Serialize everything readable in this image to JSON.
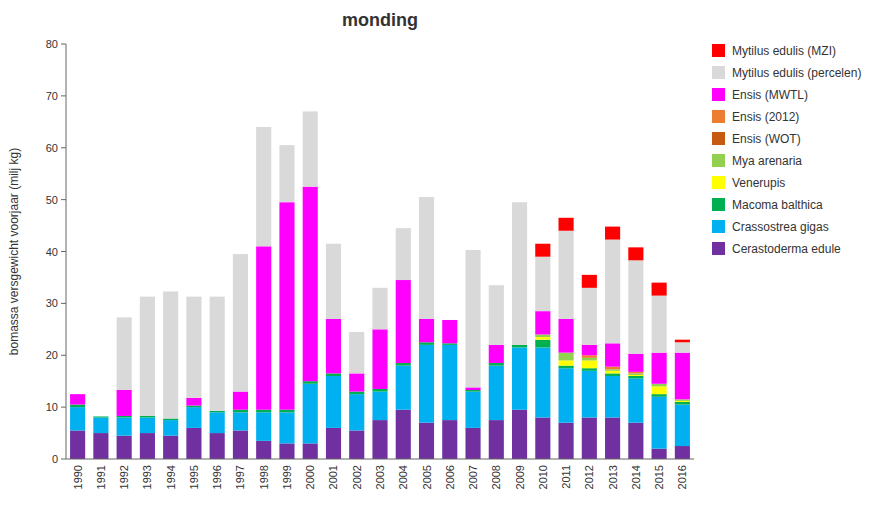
{
  "chart_data": {
    "type": "bar",
    "stacked": true,
    "title": "monding",
    "y_label": "bomassa versgewicht voorjaar (milj kg)",
    "categories": [
      "1990",
      "1991",
      "1992",
      "1993",
      "1994",
      "1995",
      "1996",
      "1997",
      "1998",
      "1999",
      "2000",
      "2001",
      "2002",
      "2003",
      "2004",
      "2005",
      "2006",
      "2007",
      "2008",
      "2009",
      "2010",
      "2011",
      "2012",
      "2013",
      "2014",
      "2015",
      "2016"
    ],
    "series": [
      {
        "name": "Cerastoderma edule",
        "color": "#7030a0",
        "values": [
          5.5,
          5.0,
          4.5,
          5.0,
          4.5,
          6.0,
          5.0,
          5.5,
          3.5,
          3.0,
          3.0,
          6.0,
          5.5,
          7.5,
          9.5,
          7.0,
          7.5,
          6.0,
          7.5,
          9.5,
          8.0,
          7.0,
          8.0,
          8.0,
          7.0,
          2.0,
          2.5
        ]
      },
      {
        "name": "Crassostrea gigas",
        "color": "#00b0f0",
        "values": [
          4.5,
          3.0,
          3.5,
          3.0,
          3.0,
          4.0,
          4.0,
          3.5,
          5.5,
          6.0,
          11.5,
          10.0,
          7.0,
          5.5,
          8.5,
          15.0,
          14.5,
          7.0,
          10.5,
          12.0,
          13.5,
          10.5,
          9.0,
          8.0,
          8.5,
          10.0,
          8.0
        ]
      },
      {
        "name": "Macoma balthica",
        "color": "#00b050",
        "values": [
          0.5,
          0.2,
          0.3,
          0.3,
          0.3,
          0.3,
          0.3,
          0.5,
          0.5,
          0.5,
          0.5,
          0.5,
          0.5,
          0.5,
          0.5,
          0.5,
          0.3,
          0.3,
          0.5,
          0.5,
          1.5,
          0.5,
          0.5,
          0.5,
          0.5,
          0.5,
          0.5
        ]
      },
      {
        "name": "Venerupis",
        "color": "#ffff00",
        "values": [
          0.0,
          0.0,
          0.0,
          0.0,
          0.0,
          0.0,
          0.0,
          0.0,
          0.0,
          0.0,
          0.0,
          0.0,
          0.0,
          0.0,
          0.0,
          0.0,
          0.0,
          0.0,
          0.0,
          0.0,
          0.5,
          1.0,
          1.5,
          0.5,
          0.2,
          1.5,
          0.2
        ]
      },
      {
        "name": "Mya arenaria",
        "color": "#92d050",
        "values": [
          0.0,
          0.0,
          0.0,
          0.0,
          0.0,
          0.0,
          0.0,
          0.0,
          0.0,
          0.0,
          0.0,
          0.0,
          0.0,
          0.0,
          0.0,
          0.0,
          0.0,
          0.0,
          0.0,
          0.0,
          0.5,
          1.5,
          0.5,
          0.3,
          0.3,
          0.5,
          0.3
        ]
      },
      {
        "name": "Ensis (WOT)",
        "color": "#c55a11",
        "values": [
          0.0,
          0.0,
          0.0,
          0.0,
          0.0,
          0.0,
          0.0,
          0.0,
          0.0,
          0.0,
          0.0,
          0.0,
          0.0,
          0.0,
          0.0,
          0.0,
          0.0,
          0.0,
          0.0,
          0.0,
          0.0,
          0.0,
          0.0,
          0.0,
          0.0,
          0.0,
          0.0
        ]
      },
      {
        "name": "Ensis (2012)",
        "color": "#ed7d31",
        "values": [
          0.0,
          0.0,
          0.0,
          0.0,
          0.0,
          0.0,
          0.0,
          0.0,
          0.0,
          0.0,
          0.0,
          0.0,
          0.0,
          0.0,
          0.0,
          0.0,
          0.0,
          0.0,
          0.0,
          0.0,
          0.0,
          0.0,
          0.5,
          0.5,
          0.3,
          0.0,
          0.0
        ]
      },
      {
        "name": "Ensis (MWTL)",
        "color": "#ff00ff",
        "values": [
          2.0,
          0.0,
          5.0,
          0.0,
          0.0,
          1.5,
          0.0,
          3.5,
          31.5,
          40.0,
          37.5,
          10.5,
          3.5,
          11.5,
          16.0,
          4.5,
          4.5,
          0.5,
          3.5,
          0.0,
          4.5,
          6.5,
          2.0,
          4.5,
          3.5,
          6.0,
          9.0
        ]
      },
      {
        "name": "Mytilus edulis (percelen)",
        "color": "#d9d9d9",
        "values": [
          0.0,
          0.0,
          14.0,
          23.0,
          24.5,
          19.5,
          22.0,
          26.5,
          23.0,
          11.0,
          14.5,
          14.5,
          8.0,
          8.0,
          10.0,
          23.5,
          0.0,
          26.5,
          11.5,
          27.5,
          10.5,
          17.0,
          11.0,
          20.0,
          18.0,
          11.0,
          2.0
        ]
      },
      {
        "name": "Mytilus edulis (MZI)",
        "color": "#ff0000",
        "values": [
          0.0,
          0.0,
          0.0,
          0.0,
          0.0,
          0.0,
          0.0,
          0.0,
          0.0,
          0.0,
          0.0,
          0.0,
          0.0,
          0.0,
          0.0,
          0.0,
          0.0,
          0.0,
          0.0,
          0.0,
          2.5,
          2.5,
          2.5,
          2.5,
          2.5,
          2.5,
          0.5
        ]
      }
    ],
    "ylim": [
      0,
      80
    ],
    "yticks": [
      0,
      10,
      20,
      30,
      40,
      50,
      60,
      70,
      80
    ],
    "grid": false,
    "legend": "right"
  }
}
